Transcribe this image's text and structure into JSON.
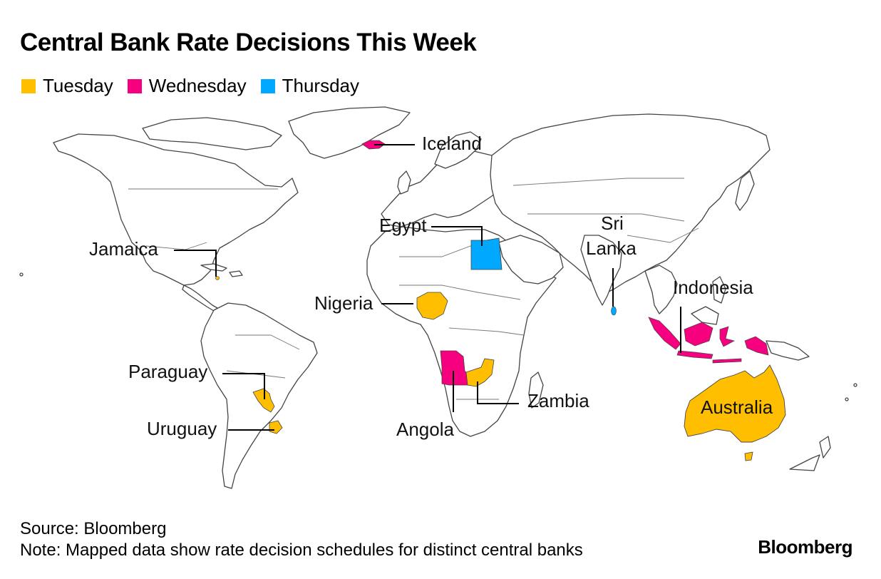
{
  "title": "Central Bank Rate Decisions This Week",
  "legend": [
    {
      "label": "Tuesday",
      "color": "#FFBF00"
    },
    {
      "label": "Wednesday",
      "color": "#F7007F"
    },
    {
      "label": "Thursday",
      "color": "#00A8FF"
    }
  ],
  "countries": [
    {
      "name": "Iceland",
      "day": "Wednesday"
    },
    {
      "name": "Egypt",
      "day": "Thursday"
    },
    {
      "name": "Sri Lanka",
      "label_lines": [
        "Sri",
        "Lanka"
      ],
      "day": "Thursday"
    },
    {
      "name": "Jamaica",
      "day": "Tuesday"
    },
    {
      "name": "Nigeria",
      "day": "Tuesday"
    },
    {
      "name": "Indonesia",
      "day": "Wednesday"
    },
    {
      "name": "Paraguay",
      "day": "Tuesday"
    },
    {
      "name": "Uruguay",
      "day": "Tuesday"
    },
    {
      "name": "Zambia",
      "day": "Tuesday"
    },
    {
      "name": "Angola",
      "day": "Wednesday"
    },
    {
      "name": "Australia",
      "day": "Tuesday"
    }
  ],
  "source": "Source: Bloomberg",
  "note": "Note: Mapped data show rate decision schedules for distinct central banks",
  "brand": "Bloomberg"
}
